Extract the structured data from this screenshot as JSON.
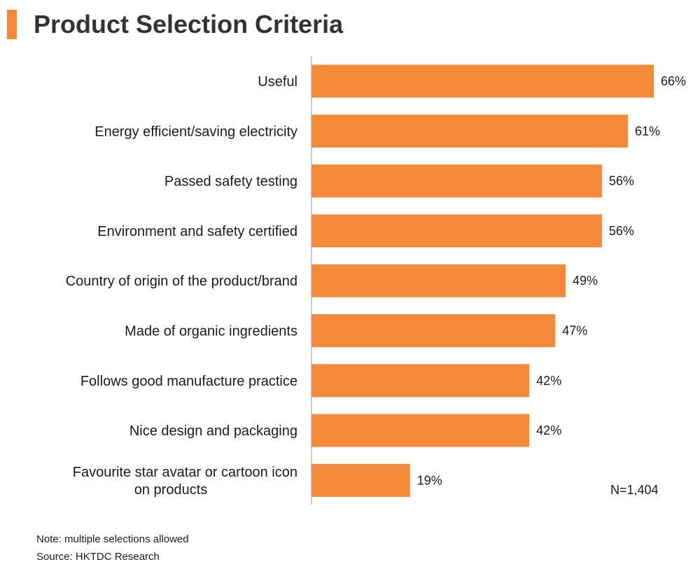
{
  "header": {
    "title": "Product Selection Criteria"
  },
  "colors": {
    "accent": "#f5893a",
    "bar": "#f5893a",
    "axis": "#999999"
  },
  "chart_data": {
    "type": "bar",
    "orientation": "horizontal",
    "title": "Product Selection Criteria",
    "xlabel": "",
    "ylabel": "",
    "unit": "%",
    "xlim": [
      0,
      66
    ],
    "grid": false,
    "legend": "none",
    "categories": [
      [
        "Useful"
      ],
      [
        "Energy efficient/saving electricity"
      ],
      [
        "Passed safety testing"
      ],
      [
        "Environment and safety certified"
      ],
      [
        "Country of origin of the product/brand"
      ],
      [
        "Made of organic ingredients"
      ],
      [
        "Follows good manufacture practice"
      ],
      [
        "Nice design and packaging"
      ],
      [
        "Favourite star avatar or cartoon icon",
        "on products"
      ]
    ],
    "values": [
      66,
      61,
      56,
      56,
      49,
      47,
      42,
      42,
      19
    ],
    "value_labels": [
      "66%",
      "61%",
      "56%",
      "56%",
      "49%",
      "47%",
      "42%",
      "42%",
      "19%"
    ],
    "annotations": {
      "sample_size": "N=1,404"
    }
  },
  "footer": {
    "note": "Note: multiple selections allowed",
    "source": "Source: HKTDC Research"
  }
}
